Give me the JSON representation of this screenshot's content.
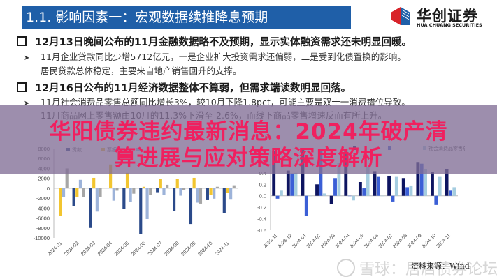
{
  "header": {
    "title": "1.1. 影响因素一：宏观数据续推降息预期",
    "logo_cn": "华创证券",
    "logo_en": "HUA CHUANG SECURITIES"
  },
  "bullets": [
    {
      "main": "12月13日晚间公布的11月金融数据略不及预期，显示实体融资需求还未明显回暖。",
      "sub": "11月企业贷款同比少增5712亿元，一是企业扩大投资需求还偏弱，二是受到化债置换的影响。",
      "sub_cont": "居民贷款总体稳定，主要来自地产销售回升的支撑。"
    },
    {
      "main": "12月16日公布的11月经济数据整体不算弱，但需求端读数明显回落。",
      "sub": "11月社会消费品零售总额同比增长3%，较10月下降1.8pct，可能主要是双十一消费错位导致。",
      "sub_cont": "11月商品网上零售额由10月的11.3%下滑至-2.6%，而线下商品零售增速反而有所上升。"
    }
  ],
  "overlay": {
    "headline_line1": "华阳债券违约最新消息：2024年破产清",
    "headline_line2": "算进展与应对策略深度解析"
  },
  "footer": {
    "watermark": "雪球：居店债券论坛",
    "source": "资料来源：Wind"
  },
  "colors": {
    "title_bar": "#1f5fa8",
    "headline": "#f0205f",
    "overlay": "#826e96",
    "series_dark_blue": "#2b4a8a",
    "series_yellow": "#f2c530",
    "series_light_blue": "#9db3d9",
    "series_gray": "#a6a6a6",
    "series_navy": "#0d1460",
    "series_blue": "#3b5fd6",
    "series_pale_blue": "#a5cde0"
  },
  "chart_data": [
    {
      "type": "bar",
      "title": "",
      "legend": [
        "贷款",
        "票据",
        "",
        ""
      ],
      "categories": [
        "2024-01",
        "2024-02",
        "2024-03",
        "2024-04",
        "2024-05",
        "2024-06",
        "2024-07",
        "2024-08",
        "2024-09",
        "2024-10",
        "2024-11"
      ],
      "ylim": [
        -10000,
        8000
      ],
      "yticks": [
        8000,
        6000,
        4000,
        2000,
        0,
        -2000,
        -4000,
        -6000,
        -8000,
        -10000
      ],
      "series": [
        {
          "name": "贷款",
          "color": "#2b4a8a",
          "values": [
            100,
            -3600,
            -8000,
            100,
            -4100,
            -9200,
            -800,
            -4600,
            -7200,
            -2400,
            -5000
          ]
        },
        {
          "name": "票据",
          "color": "#f2c530",
          "values": [
            -5600,
            -1700,
            2100,
            4800,
            3100,
            300,
            1900,
            1900,
            2100,
            -1300,
            -900
          ]
        },
        {
          "name": "series3",
          "color": "#9db3d9",
          "values": [
            -1800,
            1700,
            -4700,
            -2500,
            -2700,
            -6200,
            -1300,
            -1500,
            -2900,
            -2100,
            -2300
          ]
        },
        {
          "name": "series4",
          "color": "#a6a6a6",
          "values": [
            4000,
            -1800,
            -1700,
            -500,
            -1100,
            -1400,
            700,
            -400,
            -3100,
            300,
            600
          ]
        }
      ],
      "grid": false,
      "legend_position": "top"
    },
    {
      "type": "bar",
      "title": "",
      "legend": [
        "",
        "",
        "社会消费品零售总额"
      ],
      "categories": [
        "2023-11",
        "2023-12",
        "2024-01",
        "2024-02",
        "2024-03",
        "2024-04",
        "2024-05",
        "2024-06",
        "2024-07",
        "2024-08",
        "2024-09",
        "2024-10",
        "2024-11"
      ],
      "ylim": [
        -0.6,
        0.8
      ],
      "yticks": [
        0.6,
        0.4,
        0.2,
        0.0,
        -0.2,
        -0.4,
        -0.6
      ],
      "series": [
        {
          "name": "series1",
          "color": "#0d1460",
          "values": [
            0.78,
            0.44,
            0.8,
            0.2,
            -0.14,
            0.8,
            0.24,
            0.43,
            0.35,
            0.31,
            0.59,
            0.41,
            0.46
          ]
        },
        {
          "name": "series2",
          "color": "#3b5fd6",
          "values": [
            -0.05,
            0.39,
            -0.35,
            0.8,
            0.31,
            0.0,
            0.13,
            0.33,
            -0.1,
            0.15,
            0.56,
            -0.16,
            0.09
          ]
        },
        {
          "name": "社会消费品零售总额",
          "color": "#a5cde0",
          "values": [
            0.09,
            0.4,
            0.0,
            0.04,
            0.58,
            -0.08,
            0.51,
            0.0,
            0.33,
            0.18,
            0.47,
            0.33,
            0.15
          ]
        }
      ],
      "grid": false,
      "legend_position": "top"
    }
  ]
}
